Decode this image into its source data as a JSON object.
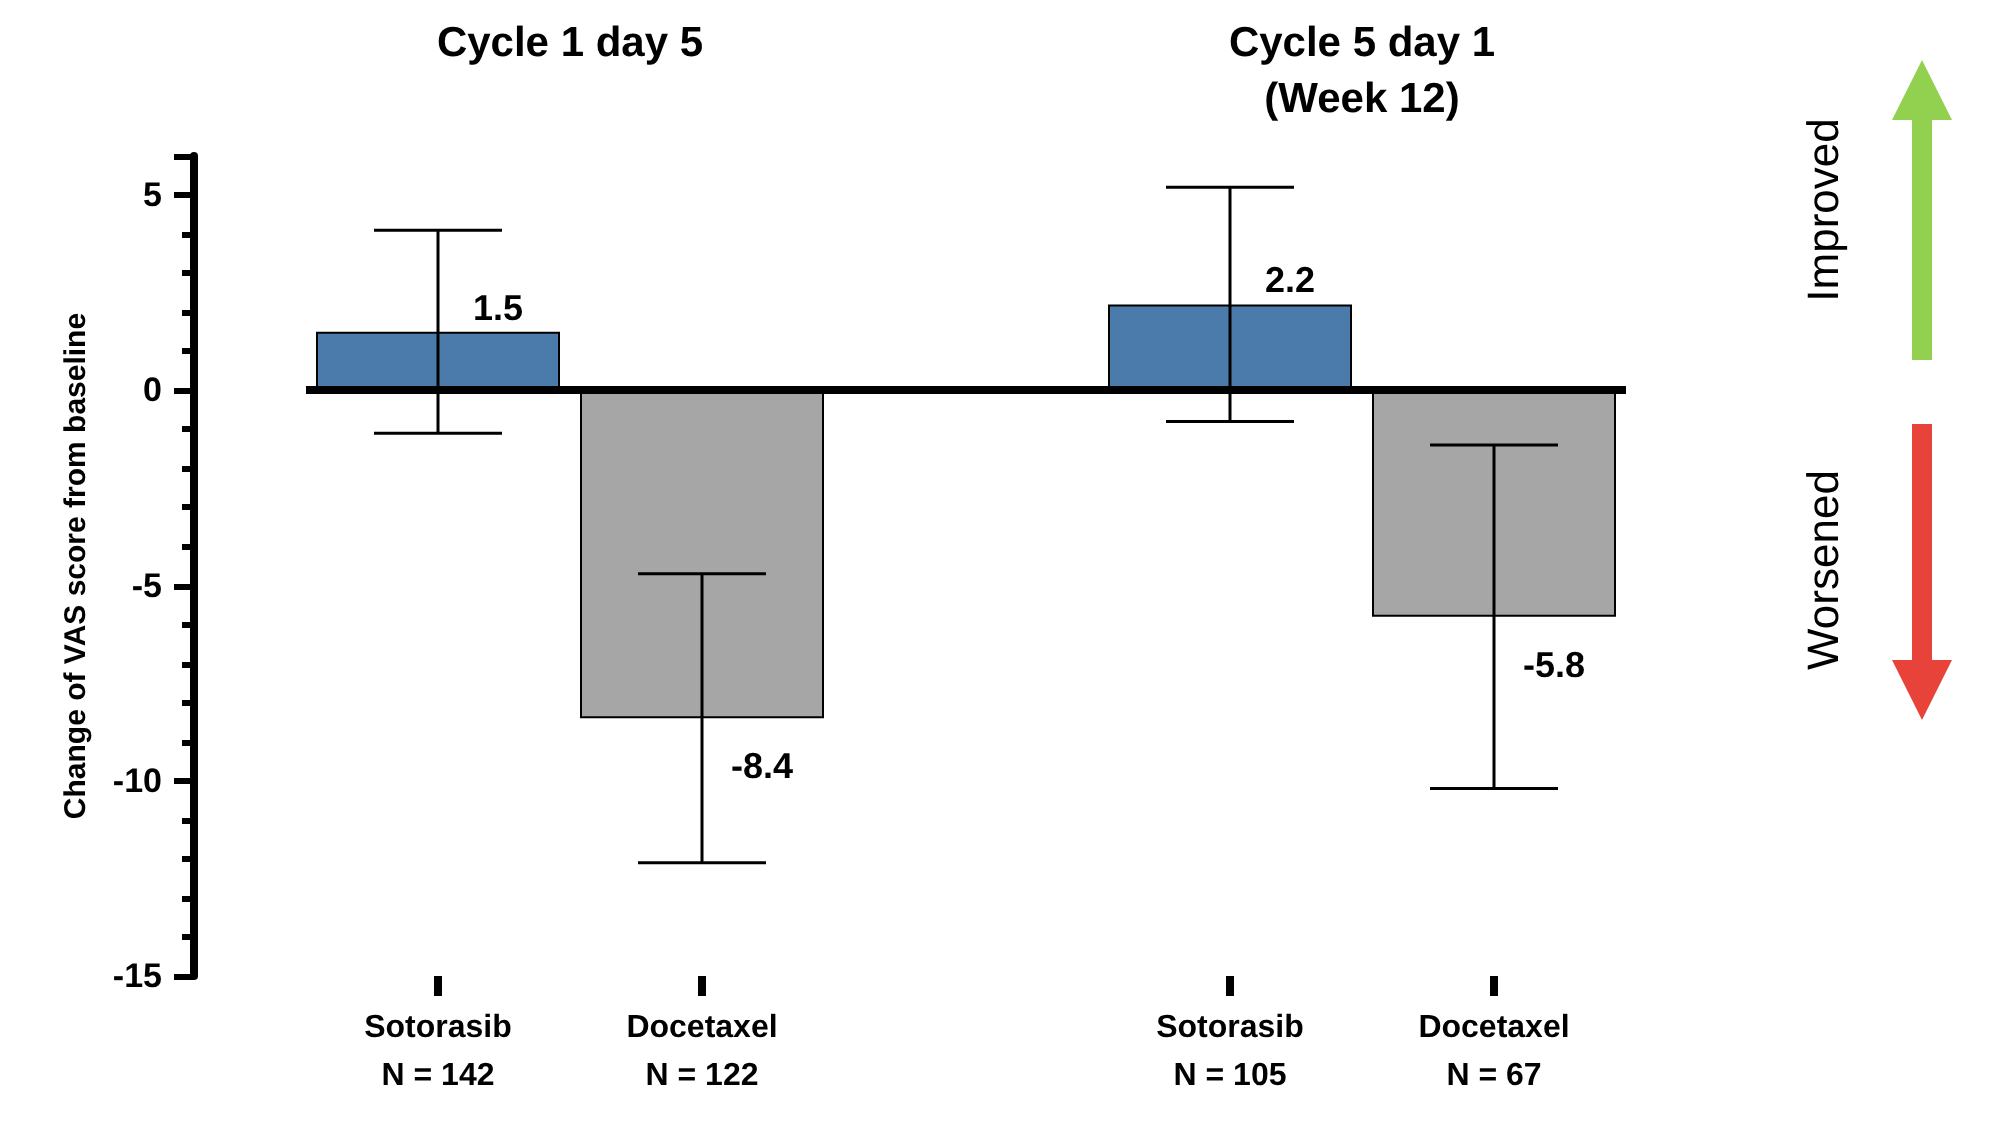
{
  "chart_data": {
    "type": "bar",
    "ylabel": "Change of VAS score from baseline",
    "categories": [
      "Sotorasib\nN = 142",
      "Docetaxel\nN = 122",
      null,
      "Sotorasib\nN = 105",
      "Docetaxel\nN = 67"
    ],
    "values": [
      1.5,
      -8.4,
      null,
      2.2,
      -5.8
    ],
    "colors": [
      "#4a7bab",
      "#a6a6a6",
      "#ffffff",
      "#4a7bab",
      "#a6a6a6"
    ],
    "errors": [
      2.6,
      3.7,
      null,
      3.0,
      4.4
    ],
    "data_labels": true,
    "ylim": [
      -15,
      6
    ],
    "yticks": [
      -15,
      -10,
      -5,
      0,
      5
    ],
    "ref_lines": [
      {
        "axis": "y",
        "value": 0,
        "color": "#000000"
      }
    ],
    "annotations": [
      "Cycle 1 day 5",
      "Cycle 5 day 1\n(Week 12)",
      "Improved",
      "Worsened"
    ],
    "grid": false
  }
}
